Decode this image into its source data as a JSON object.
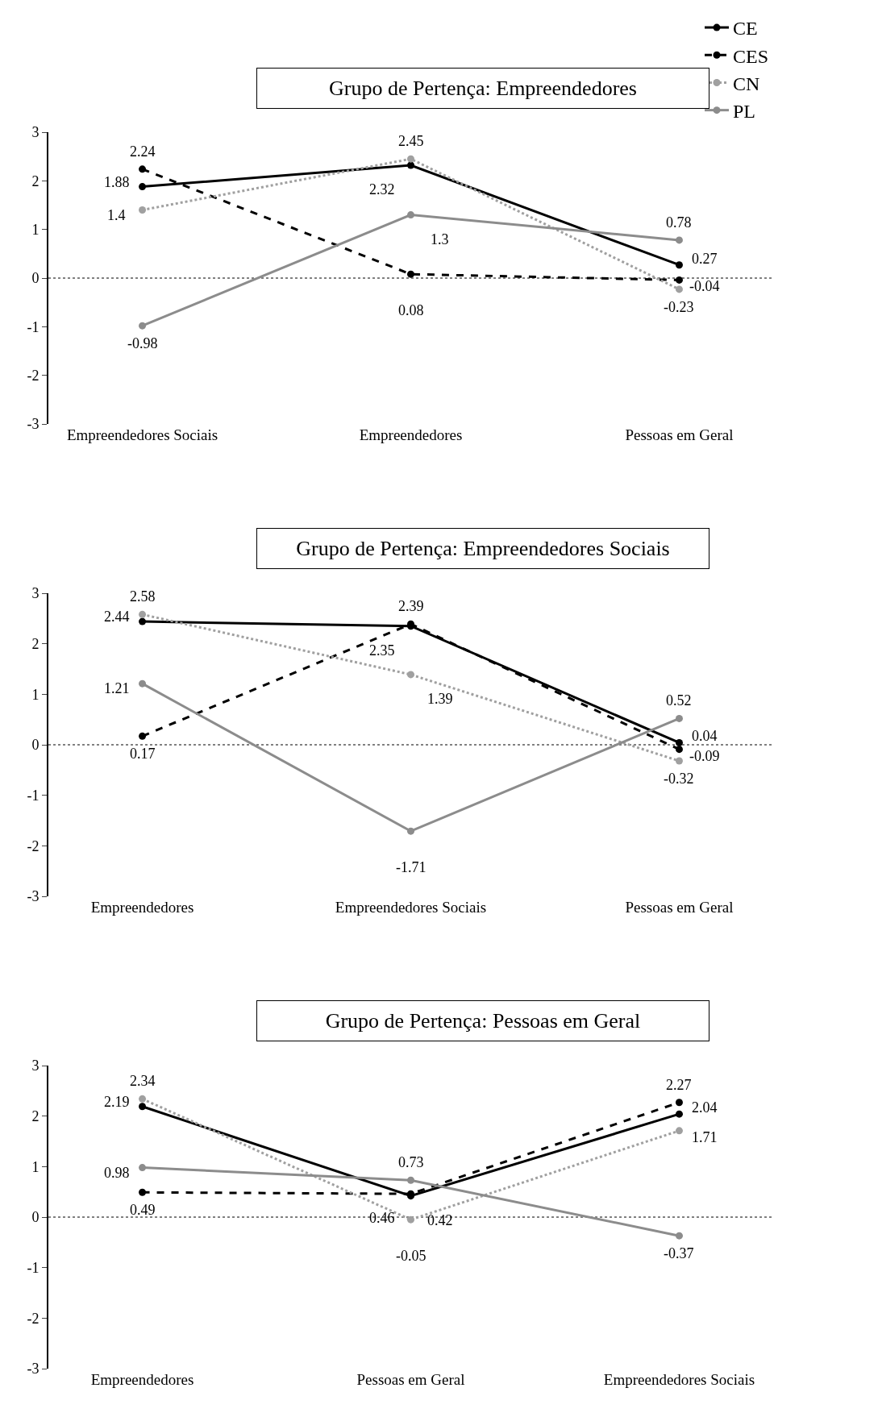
{
  "chart_data": [
    {
      "type": "line",
      "title": "Grupo de Pertença: Empreendedores",
      "categories": [
        "Empreendedores Sociais",
        "Empreendedores",
        "Pessoas em Geral"
      ],
      "series": [
        {
          "name": "CE",
          "color": "#000000",
          "line_style": "solid",
          "values": [
            1.88,
            2.32,
            0.27
          ]
        },
        {
          "name": "CES",
          "color": "#000000",
          "line_style": "dashed",
          "values": [
            2.24,
            0.08,
            -0.04
          ]
        },
        {
          "name": "CN",
          "color": "#a0a0a0",
          "line_style": "dotted",
          "values": [
            1.4,
            2.45,
            -0.23
          ]
        },
        {
          "name": "PL",
          "color": "#8c8c8c",
          "line_style": "solid",
          "values": [
            -0.98,
            1.3,
            0.78
          ]
        }
      ],
      "ylim": [
        -3,
        3
      ],
      "yticks": [
        -3,
        -2,
        -1,
        0,
        1,
        2,
        3
      ],
      "grid": false,
      "marker": "circle",
      "data_labels": true,
      "legend": "top right",
      "ref_lines": [
        {
          "axis": "y",
          "value": 0,
          "line_style": "dotted",
          "color": "#000000"
        }
      ]
    },
    {
      "type": "line",
      "title": "Grupo de Pertença: Empreendedores Sociais",
      "categories": [
        "Empreendedores",
        "Empreendedores Sociais",
        "Pessoas em Geral"
      ],
      "series": [
        {
          "color": "#000000",
          "line_style": "solid",
          "values": [
            2.44,
            2.35,
            0.04
          ]
        },
        {
          "color": "#000000",
          "line_style": "dashed",
          "values": [
            0.17,
            2.39,
            -0.09
          ]
        },
        {
          "color": "#a0a0a0",
          "line_style": "dotted",
          "values": [
            2.58,
            1.39,
            -0.32
          ]
        },
        {
          "color": "#8c8c8c",
          "line_style": "solid",
          "values": [
            1.21,
            -1.71,
            0.52
          ]
        }
      ],
      "ylim": [
        -3,
        3
      ],
      "yticks": [
        -3,
        -2,
        -1,
        0,
        1,
        2,
        3
      ],
      "grid": false,
      "marker": "circle",
      "data_labels": true,
      "ref_lines": [
        {
          "axis": "y",
          "value": 0,
          "line_style": "dotted",
          "color": "#000000"
        }
      ]
    },
    {
      "type": "line",
      "title": "Grupo de Pertença: Pessoas em Geral",
      "categories": [
        "Empreendedores",
        "Pessoas em Geral",
        "Empreendedores Sociais"
      ],
      "series": [
        {
          "color": "#000000",
          "line_style": "solid",
          "values": [
            2.19,
            0.42,
            2.04
          ]
        },
        {
          "color": "#000000",
          "line_style": "dashed",
          "values": [
            0.49,
            0.46,
            2.27
          ]
        },
        {
          "color": "#a0a0a0",
          "line_style": "dotted",
          "values": [
            2.34,
            -0.05,
            1.71
          ]
        },
        {
          "color": "#8c8c8c",
          "line_style": "solid",
          "values": [
            0.98,
            0.73,
            -0.37
          ]
        }
      ],
      "ylim": [
        -3,
        3
      ],
      "yticks": [
        -3,
        -2,
        -1,
        0,
        1,
        2,
        3
      ],
      "grid": false,
      "marker": "circle",
      "data_labels": true,
      "ref_lines": [
        {
          "axis": "y",
          "value": 0,
          "line_style": "dotted",
          "color": "#000000"
        }
      ]
    }
  ]
}
